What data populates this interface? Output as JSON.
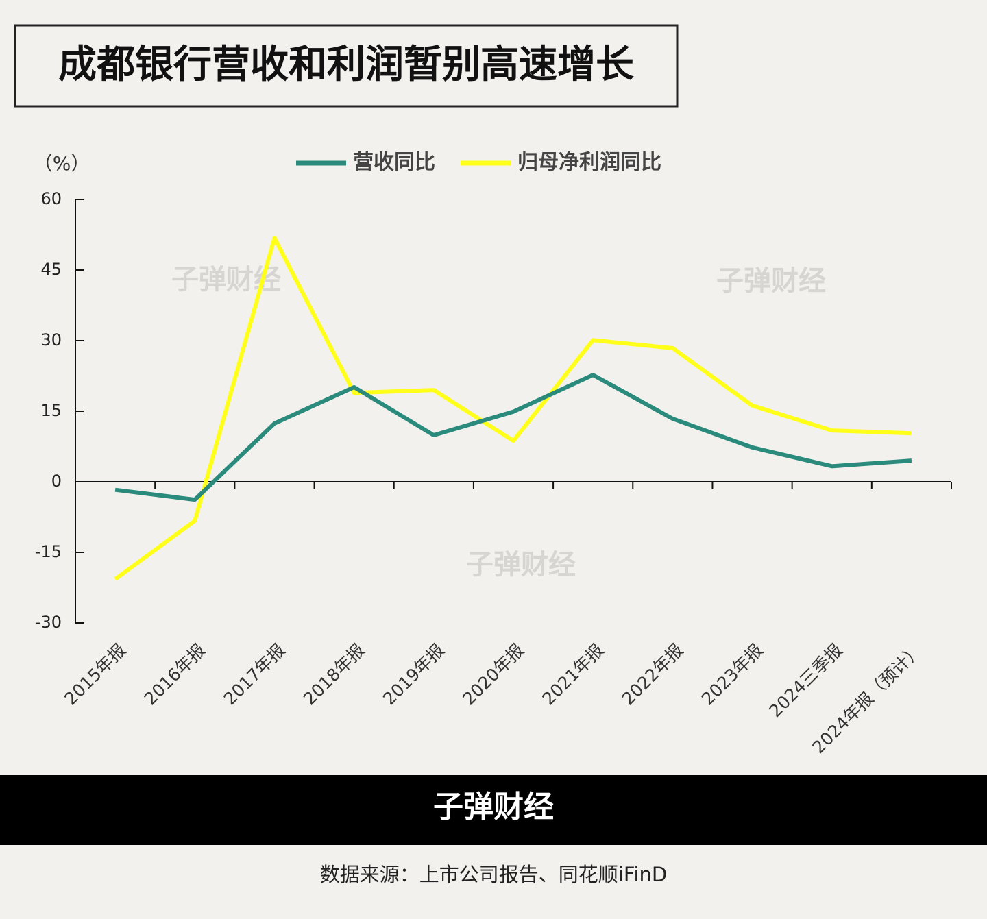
{
  "chart_data": {
    "type": "line",
    "title": "成都银行营收和利润暂别高速增长",
    "y_unit": "（%）",
    "categories": [
      "2015年报",
      "2016年报",
      "2017年报",
      "2018年报",
      "2019年报",
      "2020年报",
      "2021年报",
      "2022年报",
      "2023年报",
      "2024三季报",
      "2024年报（预计）"
    ],
    "series": [
      {
        "name": "营收同比",
        "color": "#2a8a7c",
        "values": [
          -1.7,
          -3.8,
          12.4,
          20.1,
          9.9,
          14.9,
          22.7,
          13.4,
          7.3,
          3.3,
          4.5
        ]
      },
      {
        "name": "归母净利润同比",
        "color": "#ffff1a",
        "values": [
          -20.7,
          -8.3,
          51.8,
          18.9,
          19.5,
          8.7,
          30.1,
          28.4,
          16.2,
          10.9,
          10.3
        ]
      }
    ],
    "ylim": [
      -30,
      60
    ],
    "yticks": [
      -30,
      -15,
      0,
      15,
      30,
      45,
      60
    ],
    "watermark": "子弹财经",
    "brand": "子弹财经",
    "source": "数据来源：上市公司报告、同花顺iFinD"
  }
}
